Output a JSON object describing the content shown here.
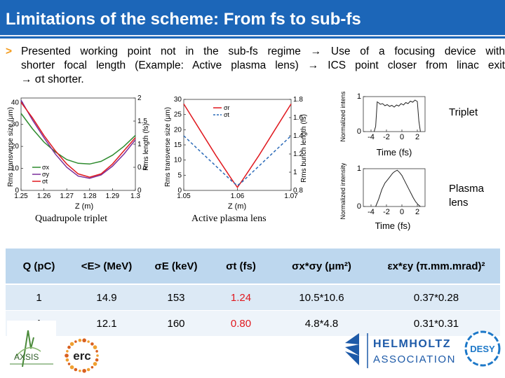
{
  "slide": {
    "title": "Limitations of the scheme: From fs to sub-fs",
    "bullet_marker": ">",
    "bullet_lines": [
      "Presented working point not in the sub-fs regime → Use of a focusing device with",
      "shorter focal length (Example: Active plasma lens) → ICS point closer from linac exit",
      "→ σt shorter."
    ]
  },
  "figures": {
    "quad_caption": "Quadrupole triplet",
    "plasma_caption": "Active plasma lens",
    "triplet_label": "Triplet",
    "plasma_label_line1": "Plasma",
    "plasma_label_line2": "lens"
  },
  "chart_data": [
    {
      "type": "line",
      "name": "quadrupole-triplet",
      "xlabel": "Z (m)",
      "ylabel_left": "Rms transverse size (μm)",
      "ylabel_right": "Rms length (fs)",
      "x_ticks": [
        "1.25",
        "1.26",
        "1.27",
        "1.28",
        "1.29",
        "1.3"
      ],
      "y_left_ticks": [
        "0",
        "10",
        "20",
        "30",
        "40"
      ],
      "y_right_ticks": [
        "0",
        "0.5",
        "1",
        "1.5",
        "2"
      ],
      "xlim": [
        1.25,
        1.3
      ],
      "ylim_left": [
        0,
        42
      ],
      "legend": [
        "σx",
        "σy",
        "σt"
      ],
      "series": [
        {
          "name": "σx",
          "color": "#2e8b2e",
          "x": [
            1.25,
            1.255,
            1.26,
            1.265,
            1.27,
            1.275,
            1.28,
            1.285,
            1.29,
            1.295,
            1.3
          ],
          "y": [
            35,
            28,
            22,
            17.5,
            14,
            12.3,
            12,
            13.2,
            16,
            20,
            25
          ]
        },
        {
          "name": "σy",
          "color": "#7b2d9a",
          "x": [
            1.25,
            1.255,
            1.26,
            1.265,
            1.27,
            1.275,
            1.28,
            1.285,
            1.29,
            1.295,
            1.3
          ],
          "y": [
            41,
            32,
            24,
            16.5,
            10.5,
            6.5,
            5.5,
            7,
            11,
            16.5,
            23
          ]
        },
        {
          "name": "σt",
          "color": "#e0191f",
          "x": [
            1.25,
            1.255,
            1.26,
            1.265,
            1.27,
            1.275,
            1.28,
            1.285,
            1.29,
            1.295,
            1.3
          ],
          "y": [
            40,
            33,
            25,
            18,
            12,
            7.5,
            6,
            7.5,
            12,
            18,
            24
          ]
        }
      ]
    },
    {
      "type": "line",
      "name": "active-plasma-lens",
      "xlabel": "Z (m)",
      "ylabel_left": "Rms transverse size (μm)",
      "ylabel_right": "Rms bunch length (fs)",
      "x_ticks": [
        "1.05",
        "1.06",
        "1.07"
      ],
      "y_left_ticks": [
        "0",
        "5",
        "10",
        "15",
        "20",
        "25",
        "30"
      ],
      "y_right_ticks": [
        "0.8",
        "1",
        "1.2",
        "1.4",
        "1.6",
        "1.8"
      ],
      "xlim": [
        1.05,
        1.07
      ],
      "ylim_left": [
        0,
        30
      ],
      "legend": [
        "σr",
        "σt"
      ],
      "series": [
        {
          "name": "σr",
          "color": "#e0191f",
          "x": [
            1.05,
            1.053,
            1.056,
            1.059,
            1.06,
            1.061,
            1.064,
            1.067,
            1.07
          ],
          "y": [
            28.5,
            20,
            11.5,
            3.5,
            1,
            3.5,
            11.5,
            20,
            28.5
          ]
        },
        {
          "name": "σt",
          "color": "#2a6ab8",
          "x": [
            1.05,
            1.053,
            1.056,
            1.059,
            1.06,
            1.061,
            1.064,
            1.067,
            1.07
          ],
          "y": [
            18,
            13,
            8,
            3,
            1.6,
            3,
            8,
            13,
            18
          ]
        }
      ]
    },
    {
      "type": "line",
      "name": "triplet-bunch-profile",
      "xlabel": "Time (fs)",
      "ylabel": "Normalized intensity",
      "x_ticks": [
        "-4",
        "-2",
        "0",
        "2"
      ],
      "y_ticks": [
        "0",
        "1"
      ],
      "xlim": [
        -5,
        3
      ],
      "ylim": [
        0,
        1
      ],
      "series": [
        {
          "name": "",
          "color": "#222222",
          "x": [
            -3.6,
            -3.4,
            -3.2,
            -3.0,
            -2.8,
            -2.5,
            -2.2,
            -1.9,
            -1.6,
            -1.3,
            -1.0,
            -0.7,
            -0.4,
            -0.1,
            0.2,
            0.5,
            0.8,
            1.1,
            1.4,
            1.7,
            2.0,
            2.2,
            2.4
          ],
          "y": [
            0,
            0.15,
            0.85,
            0.82,
            0.78,
            0.8,
            0.74,
            0.77,
            0.72,
            0.75,
            0.7,
            0.76,
            0.73,
            0.8,
            0.76,
            0.83,
            0.8,
            0.87,
            0.84,
            0.9,
            0.86,
            0.3,
            0
          ]
        }
      ]
    },
    {
      "type": "line",
      "name": "plasma-lens-bunch-profile",
      "xlabel": "Time (fs)",
      "ylabel": "Normalized intensity",
      "x_ticks": [
        "-4",
        "-2",
        "0",
        "2"
      ],
      "y_ticks": [
        "0",
        "1"
      ],
      "xlim": [
        -5,
        3
      ],
      "ylim": [
        0,
        1
      ],
      "series": [
        {
          "name": "",
          "color": "#222222",
          "x": [
            -3.4,
            -3.0,
            -2.6,
            -2.2,
            -1.8,
            -1.5,
            -1.2,
            -0.9,
            -0.6,
            -0.3,
            0.0,
            0.3,
            0.6,
            0.9,
            1.2,
            1.5,
            1.8,
            2.1,
            2.4
          ],
          "y": [
            0,
            0.2,
            0.45,
            0.62,
            0.72,
            0.8,
            0.88,
            0.93,
            0.96,
            0.9,
            0.82,
            0.7,
            0.58,
            0.46,
            0.34,
            0.22,
            0.12,
            0.05,
            0
          ]
        }
      ]
    }
  ],
  "table": {
    "headers": [
      "Q (pC)",
      "<E> (MeV)",
      "σE (keV)",
      "σt (fs)",
      "σx*σy (μm²)",
      "εx*εy (π.mm.mrad)²"
    ],
    "rows": [
      [
        "1",
        "14.9",
        "153",
        "1.24",
        "10.5*10.6",
        "0.37*0.28"
      ],
      [
        "1",
        "12.1",
        "160",
        "0.80",
        "4.8*4.8",
        "0.31*0.31"
      ]
    ]
  },
  "logos": {
    "axsis": "AXSIS",
    "erc": "erc",
    "helmholtz_line1": "HELMHOLTZ",
    "helmholtz_line2": "ASSOCIATION",
    "desy": "DESY"
  }
}
